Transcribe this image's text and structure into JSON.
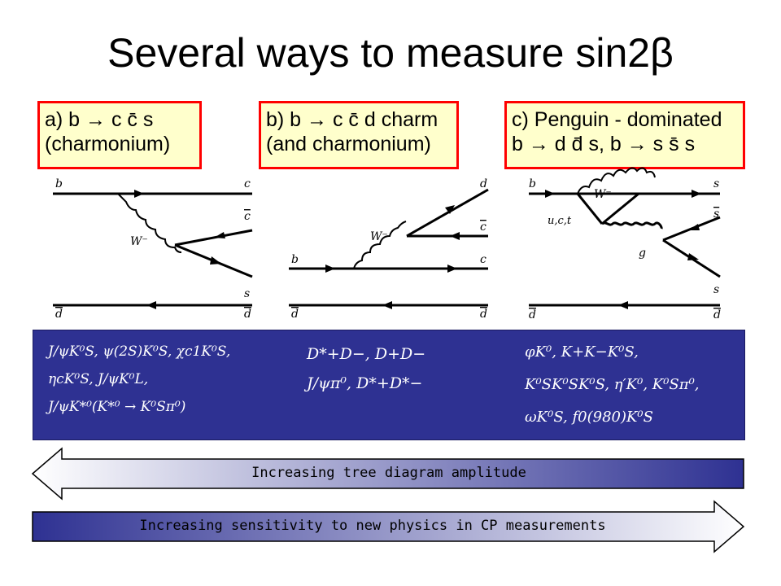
{
  "title": "Several ways to measure sin2β",
  "boxes": {
    "a": {
      "line1": "a) b → c c̄ s",
      "line2": "(charmonium)"
    },
    "b": {
      "line1": "b) b → c c̄ d charm",
      "line2": "(and charmonium)"
    },
    "c": {
      "line1": "c) Penguin - dominated",
      "line2": "b → d d̄ s, b → s s̄ s"
    }
  },
  "diagram_labels": {
    "a": {
      "b": "b",
      "c": "c",
      "cbar": "c",
      "w": "W⁻",
      "s": "s",
      "dbar_left": "d",
      "dbar_right": "d"
    },
    "b": {
      "d": "d",
      "cbar": "c",
      "w": "W⁻",
      "b": "b",
      "c": "c",
      "dbar_left": "d",
      "dbar_right": "d"
    },
    "c": {
      "b": "b",
      "w": "W⁻",
      "s": "s",
      "sbar": "s",
      "uct": "u,c,t",
      "g": "g",
      "s2": "s",
      "dbar_left": "d",
      "dbar_right": "d"
    }
  },
  "modes": {
    "a": [
      "J/ψK⁰S, ψ(2S)K⁰S, χc1K⁰S,",
      "ηcK⁰S, J/ψK⁰L,",
      "J/ψK*⁰(K*⁰ → K⁰Sπ⁰)"
    ],
    "b": [
      "D*+D−, D+D−",
      "J/ψπ⁰, D*+D*−"
    ],
    "c": [
      "φK⁰, K+K−K⁰S,",
      "K⁰SK⁰SK⁰S, η′K⁰, K⁰Sπ⁰,",
      "ωK⁰S, f0(980)K⁰S"
    ]
  },
  "arrows": {
    "tree": "Increasing tree diagram amplitude",
    "sensitivity": "Increasing sensitivity to new physics in CP measurements"
  },
  "colors": {
    "box_border": "#ff0000",
    "box_fill": "#ffffcc",
    "panel": "#2e3192",
    "arrow_dark": "#2e3192"
  }
}
